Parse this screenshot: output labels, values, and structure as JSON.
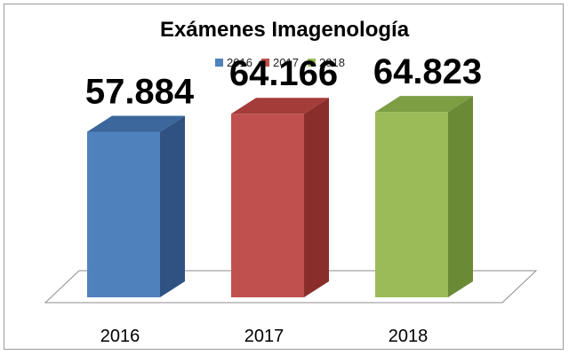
{
  "chart_data": {
    "type": "bar",
    "title": "Exámenes Imagenología",
    "categories": [
      "2016",
      "2017",
      "2018"
    ],
    "values": [
      57884,
      64166,
      64823
    ],
    "value_labels": [
      "57.884",
      "64.166",
      "64.823"
    ],
    "legend": [
      "2016",
      "2017",
      "2018"
    ],
    "colors": [
      "#4f81bd",
      "#c0504d",
      "#9bbb59"
    ],
    "side_colors": [
      "#2f5283",
      "#8a2e2c",
      "#6a8a36"
    ],
    "top_colors": [
      "#3b679d",
      "#a43c39",
      "#7e9e44"
    ],
    "legend_position": "top",
    "grid": false,
    "style": "3d-column",
    "ylim": [
      0,
      90000
    ]
  }
}
